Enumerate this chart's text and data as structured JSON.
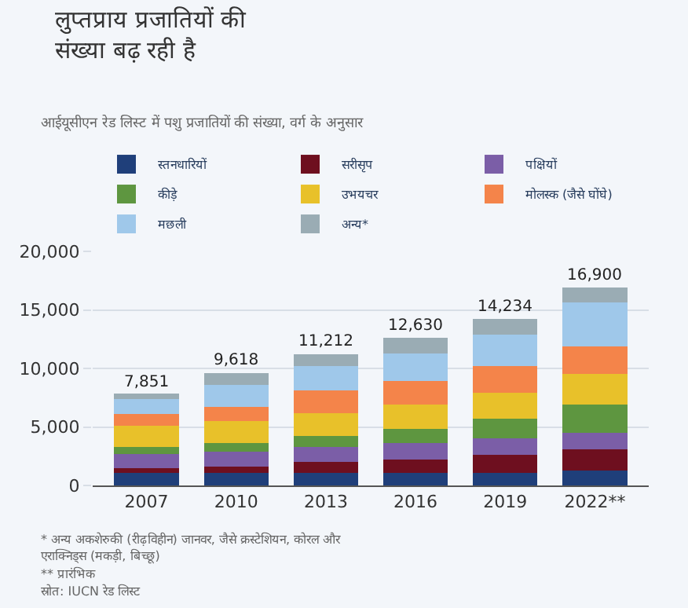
{
  "chart_data": {
    "type": "bar",
    "stacked": true,
    "title": "लुप्तप्राय प्रजातियों की\nसंख्या बढ़ रही है",
    "subtitle": "आईयूसीएन रेड लिस्ट में पशु प्रजातियों की संख्या, वर्ग के अनुसार",
    "categories": [
      "2007",
      "2010",
      "2013",
      "2016",
      "2019",
      "2022**"
    ],
    "series": [
      {
        "name": "स्तनधारियों",
        "color": "#1f3f7a",
        "values": [
          1100,
          1100,
          1100,
          1100,
          1100,
          1300
        ]
      },
      {
        "name": "सरीसृप",
        "color": "#6e0f1f",
        "values": [
          400,
          500,
          900,
          1100,
          1500,
          1800
        ]
      },
      {
        "name": "पक्षियों",
        "color": "#7b5ea7",
        "values": [
          1200,
          1300,
          1300,
          1400,
          1400,
          1400
        ]
      },
      {
        "name": "कीड़े",
        "color": "#5e9640",
        "values": [
          600,
          700,
          900,
          1200,
          1700,
          2400
        ]
      },
      {
        "name": "उभयचर",
        "color": "#e8c12a",
        "values": [
          1800,
          1900,
          2000,
          2100,
          2200,
          2600
        ]
      },
      {
        "name": "मोलस्क (जैसे घोंघे)",
        "color": "#f4844a",
        "values": [
          1000,
          1200,
          1900,
          2000,
          2300,
          2400
        ]
      },
      {
        "name": "मछली",
        "color": "#9fc8ea",
        "values": [
          1300,
          1900,
          2100,
          2400,
          2700,
          3750
        ]
      },
      {
        "name": "अन्य*",
        "color": "#9aacb4",
        "values": [
          451,
          1018,
          1012,
          1330,
          1334,
          1250
        ]
      }
    ],
    "totals": [
      "7,851",
      "9,618",
      "11,212",
      "12,630",
      "14,234",
      "16,900"
    ],
    "ylim": [
      0,
      20000
    ],
    "yticks": [
      {
        "value": 0,
        "label": "0"
      },
      {
        "value": 5000,
        "label": "5,000"
      },
      {
        "value": 10000,
        "label": "10,000"
      },
      {
        "value": 15000,
        "label": "15,000"
      },
      {
        "value": 20000,
        "label": "20,000"
      }
    ],
    "grid": "y",
    "legend": "top",
    "annotations": [
      "* अन्य अकशेरुकी (रीढ़विहीन) जानवर, जैसे क्रस्टेशियन, कोरल और\nएराक्निड्स (मकड़ी, बिच्छू)",
      "** प्रारंभिक",
      "स्रोत: IUCN रेड लिस्ट"
    ]
  }
}
